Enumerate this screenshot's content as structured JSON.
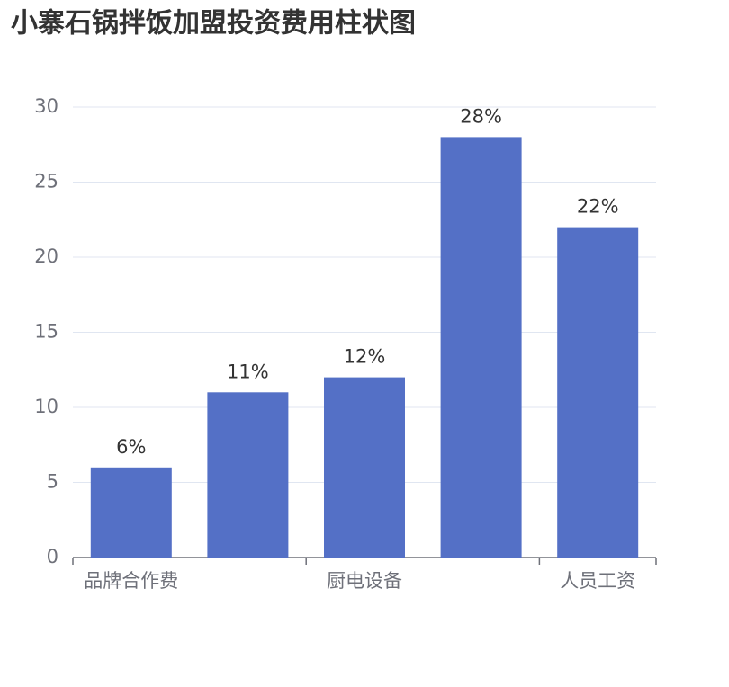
{
  "chart_data": {
    "type": "bar",
    "title": "小寨石锅拌饭加盟投资费用柱状图",
    "categories": [
      "品牌合作费",
      null,
      "厨电设备",
      null,
      "人员工资"
    ],
    "values": [
      6,
      11,
      12,
      28,
      22
    ],
    "value_labels": [
      "6%",
      "11%",
      "12%",
      "28%",
      "22%"
    ],
    "color": "#5470c6",
    "ylim": [
      0,
      30
    ],
    "yticks": [
      0,
      5,
      10,
      15,
      20,
      25,
      30
    ],
    "grid": true
  }
}
